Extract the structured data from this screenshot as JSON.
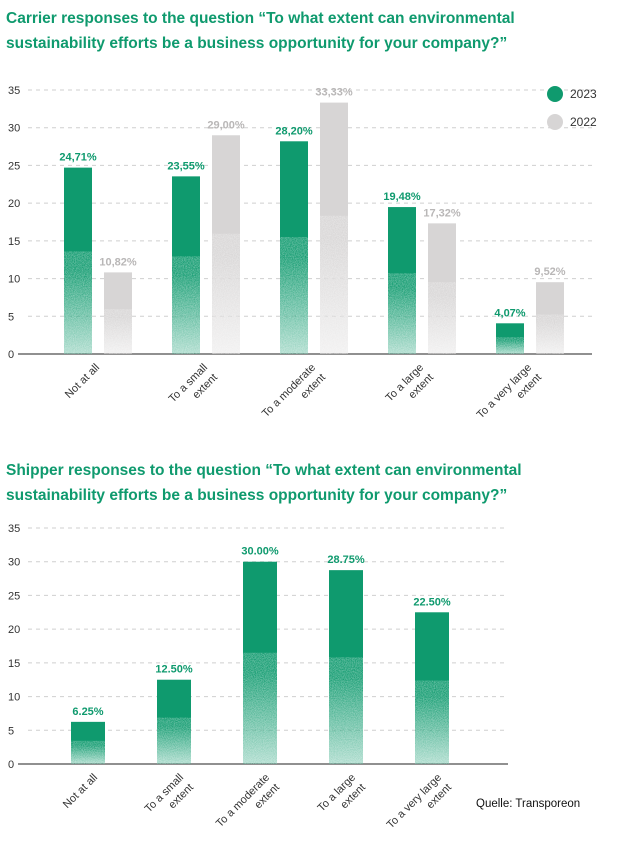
{
  "colors": {
    "y2023": "#0f9a6e",
    "y2022": "#d7d5d5",
    "label2022": "#b9b7b7",
    "grid": "#cfcfcf"
  },
  "chart_data": [
    {
      "type": "bar",
      "title": "Carrier responses to the question “To what extent can environmental sustainability efforts be a business opportunity for your company?”",
      "categories": [
        "Not at all",
        "To a small extent",
        "To a moderate extent",
        "To a large extent",
        "To a very large extent"
      ],
      "category_lines": [
        [
          "Not at all"
        ],
        [
          "To a small",
          "extent"
        ],
        [
          "To a moderate",
          "extent"
        ],
        [
          "To a large",
          "extent"
        ],
        [
          "To a very large",
          "extent"
        ]
      ],
      "series": [
        {
          "name": "2023",
          "values": [
            24.71,
            23.55,
            28.2,
            19.48,
            4.07
          ],
          "labels": [
            "24,71%",
            "23,55%",
            "28,20%",
            "19,48%",
            "4,07%"
          ]
        },
        {
          "name": "2022",
          "values": [
            10.82,
            29.0,
            33.33,
            17.32,
            9.52
          ],
          "labels": [
            "10,82%",
            "29,00%",
            "33,33%",
            "17,32%",
            "9,52%"
          ]
        }
      ],
      "ylim": [
        0,
        35
      ],
      "yticks": [
        0,
        5,
        10,
        15,
        20,
        25,
        30,
        35
      ],
      "grid": true,
      "legend": "top-right"
    },
    {
      "type": "bar",
      "title": "Shipper responses to the question “To what extent can environmental sustainability efforts be a business opportunity for your company?”",
      "categories": [
        "Not at all",
        "To a small extent",
        "To a moderate extent",
        "To a large extent",
        "To a very large extent"
      ],
      "category_lines": [
        [
          "Not at all"
        ],
        [
          "To a small",
          "extent"
        ],
        [
          "To a moderate",
          "extent"
        ],
        [
          "To a large",
          "extent"
        ],
        [
          "To a very large",
          "extent"
        ]
      ],
      "series": [
        {
          "values": [
            6.25,
            12.5,
            30.0,
            28.75,
            22.5
          ],
          "labels": [
            "6.25%",
            "12.50%",
            "30.00%",
            "28.75%",
            "22.50%"
          ]
        }
      ],
      "ylim": [
        0,
        35
      ],
      "yticks": [
        0,
        5,
        10,
        15,
        20,
        25,
        30,
        35
      ],
      "grid": true
    }
  ],
  "source": "Quelle: Transporeon"
}
